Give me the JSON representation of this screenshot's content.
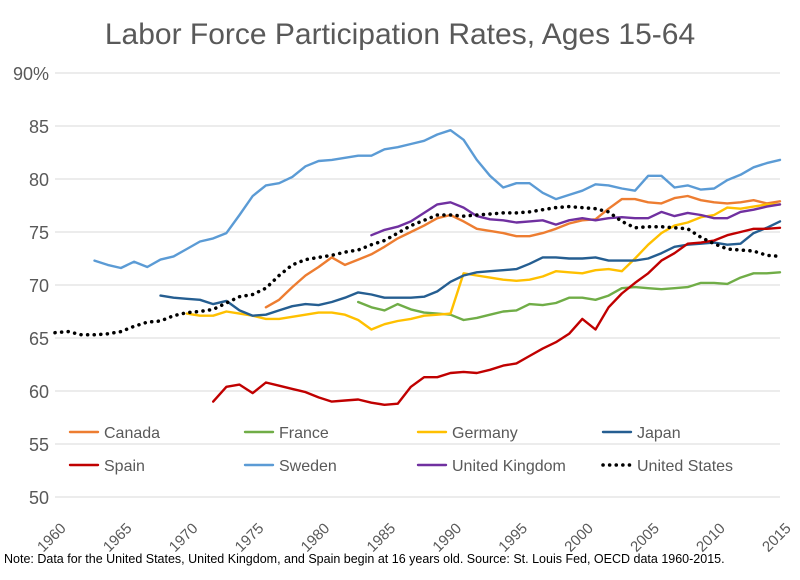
{
  "chart_data": {
    "type": "line",
    "title": "Labor Force Participation Rates, Ages 15-64",
    "xlabel": "",
    "ylabel": "",
    "ylim": [
      50,
      90
    ],
    "xlim": [
      1960,
      2015
    ],
    "y_ticks": [
      "50",
      "55",
      "60",
      "65",
      "70",
      "75",
      "80",
      "85",
      "90%"
    ],
    "x_ticks": [
      "1960",
      "1965",
      "1970",
      "1975",
      "1980",
      "1985",
      "1990",
      "1995",
      "2000",
      "2005",
      "2010",
      "2015"
    ],
    "grid": "horizontal",
    "legend_position": "bottom-inside",
    "note": "Note: Data for the United States, United Kingdom, and Spain begin at 16 years old. Source: St. Louis Fed, OECD data 1960-2015.",
    "series": [
      {
        "name": "Canada",
        "color": "#ED7D31",
        "style": "solid",
        "x": [
          1976,
          1977,
          1978,
          1979,
          1980,
          1981,
          1982,
          1983,
          1984,
          1985,
          1986,
          1987,
          1988,
          1989,
          1990,
          1991,
          1992,
          1993,
          1994,
          1995,
          1996,
          1997,
          1998,
          1999,
          2000,
          2001,
          2002,
          2003,
          2004,
          2005,
          2006,
          2007,
          2008,
          2009,
          2010,
          2011,
          2012,
          2013,
          2014,
          2015
        ],
        "values": [
          67.9,
          68.6,
          69.8,
          70.9,
          71.7,
          72.6,
          71.9,
          72.4,
          72.9,
          73.6,
          74.4,
          75.0,
          75.6,
          76.3,
          76.6,
          76.0,
          75.3,
          75.1,
          74.9,
          74.6,
          74.6,
          74.9,
          75.3,
          75.8,
          76.1,
          76.2,
          77.2,
          78.1,
          78.1,
          77.8,
          77.7,
          78.2,
          78.4,
          78.0,
          77.8,
          77.7,
          77.8,
          78.0,
          77.7,
          77.9
        ]
      },
      {
        "name": "France",
        "color": "#70AD47",
        "style": "solid",
        "x": [
          1983,
          1984,
          1985,
          1986,
          1987,
          1988,
          1989,
          1990,
          1991,
          1992,
          1993,
          1994,
          1995,
          1996,
          1997,
          1998,
          1999,
          2000,
          2001,
          2002,
          2003,
          2004,
          2005,
          2006,
          2007,
          2008,
          2009,
          2010,
          2011,
          2012,
          2013,
          2014,
          2015
        ],
        "values": [
          68.4,
          67.9,
          67.6,
          68.2,
          67.7,
          67.4,
          67.3,
          67.2,
          66.7,
          66.9,
          67.2,
          67.5,
          67.6,
          68.2,
          68.1,
          68.3,
          68.8,
          68.8,
          68.6,
          69.0,
          69.7,
          69.8,
          69.7,
          69.6,
          69.7,
          69.8,
          70.2,
          70.2,
          70.1,
          70.7,
          71.1,
          71.1,
          71.2
        ]
      },
      {
        "name": "Germany",
        "color": "#FFC000",
        "style": "solid",
        "x": [
          1970,
          1971,
          1972,
          1973,
          1974,
          1975,
          1976,
          1977,
          1978,
          1979,
          1980,
          1981,
          1982,
          1983,
          1984,
          1985,
          1986,
          1987,
          1988,
          1989,
          1990,
          1991,
          1992,
          1993,
          1994,
          1995,
          1996,
          1997,
          1998,
          1999,
          2000,
          2001,
          2002,
          2003,
          2004,
          2005,
          2006,
          2007,
          2008,
          2009,
          2010,
          2011,
          2012,
          2013,
          2014,
          2015
        ],
        "values": [
          67.3,
          67.1,
          67.1,
          67.5,
          67.3,
          67.1,
          66.8,
          66.8,
          67.0,
          67.2,
          67.4,
          67.4,
          67.2,
          66.7,
          65.8,
          66.3,
          66.6,
          66.8,
          67.1,
          67.2,
          67.3,
          71.1,
          70.9,
          70.7,
          70.5,
          70.4,
          70.5,
          70.8,
          71.3,
          71.2,
          71.1,
          71.4,
          71.5,
          71.3,
          72.5,
          73.8,
          74.9,
          75.6,
          75.9,
          76.4,
          76.6,
          77.3,
          77.2,
          77.4,
          77.6,
          77.6
        ]
      },
      {
        "name": "Japan",
        "color": "#255E91",
        "style": "solid",
        "x": [
          1968,
          1969,
          1970,
          1971,
          1972,
          1973,
          1974,
          1975,
          1976,
          1977,
          1978,
          1979,
          1980,
          1981,
          1982,
          1983,
          1984,
          1985,
          1986,
          1987,
          1988,
          1989,
          1990,
          1991,
          1992,
          1993,
          1994,
          1995,
          1996,
          1997,
          1998,
          1999,
          2000,
          2001,
          2002,
          2003,
          2004,
          2005,
          2006,
          2007,
          2008,
          2009,
          2010,
          2011,
          2012,
          2013,
          2014,
          2015
        ],
        "values": [
          69.0,
          68.8,
          68.7,
          68.6,
          68.2,
          68.5,
          67.6,
          67.1,
          67.2,
          67.6,
          68.0,
          68.2,
          68.1,
          68.4,
          68.8,
          69.3,
          69.1,
          68.8,
          68.8,
          68.8,
          68.9,
          69.4,
          70.3,
          70.9,
          71.2,
          71.3,
          71.4,
          71.5,
          72.0,
          72.6,
          72.6,
          72.5,
          72.5,
          72.6,
          72.3,
          72.3,
          72.3,
          72.5,
          73.0,
          73.6,
          73.8,
          73.9,
          74.0,
          73.8,
          73.9,
          74.9,
          75.4,
          76.0
        ]
      },
      {
        "name": "Spain",
        "color": "#C00000",
        "style": "solid",
        "x": [
          1972,
          1973,
          1974,
          1975,
          1976,
          1977,
          1978,
          1979,
          1980,
          1981,
          1982,
          1983,
          1984,
          1985,
          1986,
          1987,
          1988,
          1989,
          1990,
          1991,
          1992,
          1993,
          1994,
          1995,
          1996,
          1997,
          1998,
          1999,
          2000,
          2001,
          2002,
          2003,
          2004,
          2005,
          2006,
          2007,
          2008,
          2009,
          2010,
          2011,
          2012,
          2013,
          2014,
          2015
        ],
        "values": [
          59.0,
          60.4,
          60.6,
          59.8,
          60.8,
          60.5,
          60.2,
          59.9,
          59.4,
          59.0,
          59.1,
          59.2,
          58.9,
          58.7,
          58.8,
          60.4,
          61.3,
          61.3,
          61.7,
          61.8,
          61.7,
          62.0,
          62.4,
          62.6,
          63.3,
          64.0,
          64.6,
          65.4,
          66.8,
          65.8,
          67.9,
          69.2,
          70.2,
          71.1,
          72.3,
          73.0,
          73.9,
          74.0,
          74.2,
          74.7,
          75.0,
          75.3,
          75.3,
          75.4
        ]
      },
      {
        "name": "Sweden",
        "color": "#5B9BD5",
        "style": "solid",
        "x": [
          1963,
          1964,
          1965,
          1966,
          1967,
          1968,
          1969,
          1970,
          1971,
          1972,
          1973,
          1974,
          1975,
          1976,
          1977,
          1978,
          1979,
          1980,
          1981,
          1982,
          1983,
          1984,
          1985,
          1986,
          1987,
          1988,
          1989,
          1990,
          1991,
          1992,
          1993,
          1994,
          1995,
          1996,
          1997,
          1998,
          1999,
          2000,
          2001,
          2002,
          2003,
          2004,
          2005,
          2006,
          2007,
          2008,
          2009,
          2010,
          2011,
          2012,
          2013,
          2014,
          2015
        ],
        "values": [
          72.3,
          71.9,
          71.6,
          72.2,
          71.7,
          72.4,
          72.7,
          73.4,
          74.1,
          74.4,
          74.9,
          76.6,
          78.4,
          79.4,
          79.6,
          80.2,
          81.2,
          81.7,
          81.8,
          82.0,
          82.2,
          82.2,
          82.8,
          83.0,
          83.3,
          83.6,
          84.2,
          84.6,
          83.7,
          81.8,
          80.3,
          79.2,
          79.6,
          79.6,
          78.7,
          78.1,
          78.5,
          78.9,
          79.5,
          79.4,
          79.1,
          78.9,
          80.3,
          80.3,
          79.2,
          79.4,
          79.0,
          79.1,
          79.9,
          80.4,
          81.1,
          81.5,
          81.8
        ]
      },
      {
        "name": "United Kingdom",
        "color": "#7030A0",
        "style": "solid",
        "x": [
          1984,
          1985,
          1986,
          1987,
          1988,
          1989,
          1990,
          1991,
          1992,
          1993,
          1994,
          1995,
          1996,
          1997,
          1998,
          1999,
          2000,
          2001,
          2002,
          2003,
          2004,
          2005,
          2006,
          2007,
          2008,
          2009,
          2010,
          2011,
          2012,
          2013,
          2014,
          2015
        ],
        "values": [
          74.7,
          75.2,
          75.5,
          76.0,
          76.8,
          77.6,
          77.8,
          77.3,
          76.5,
          76.2,
          76.1,
          75.9,
          76.0,
          76.1,
          75.7,
          76.1,
          76.3,
          76.1,
          76.3,
          76.4,
          76.3,
          76.3,
          76.9,
          76.5,
          76.8,
          76.6,
          76.3,
          76.3,
          76.9,
          77.1,
          77.4,
          77.6
        ]
      },
      {
        "name": "United States",
        "color": "#000000",
        "style": "dotted",
        "x": [
          1960,
          1961,
          1962,
          1963,
          1964,
          1965,
          1966,
          1967,
          1968,
          1969,
          1970,
          1971,
          1972,
          1973,
          1974,
          1975,
          1976,
          1977,
          1978,
          1979,
          1980,
          1981,
          1982,
          1983,
          1984,
          1985,
          1986,
          1987,
          1988,
          1989,
          1990,
          1991,
          1992,
          1993,
          1994,
          1995,
          1996,
          1997,
          1998,
          1999,
          2000,
          2001,
          2002,
          2003,
          2004,
          2005,
          2006,
          2007,
          2008,
          2009,
          2010,
          2011,
          2012,
          2013,
          2014,
          2015
        ],
        "values": [
          65.5,
          65.6,
          65.3,
          65.3,
          65.4,
          65.6,
          66.1,
          66.5,
          66.6,
          67.1,
          67.4,
          67.5,
          67.7,
          68.3,
          68.9,
          69.1,
          69.7,
          70.9,
          71.9,
          72.4,
          72.6,
          72.8,
          73.1,
          73.3,
          73.8,
          74.2,
          74.9,
          75.6,
          76.1,
          76.6,
          76.6,
          76.5,
          76.6,
          76.7,
          76.8,
          76.8,
          76.9,
          77.1,
          77.3,
          77.4,
          77.3,
          77.2,
          76.9,
          76.0,
          75.4,
          75.5,
          75.5,
          75.4,
          75.3,
          74.5,
          73.9,
          73.4,
          73.3,
          73.2,
          72.8,
          72.7
        ]
      }
    ]
  }
}
